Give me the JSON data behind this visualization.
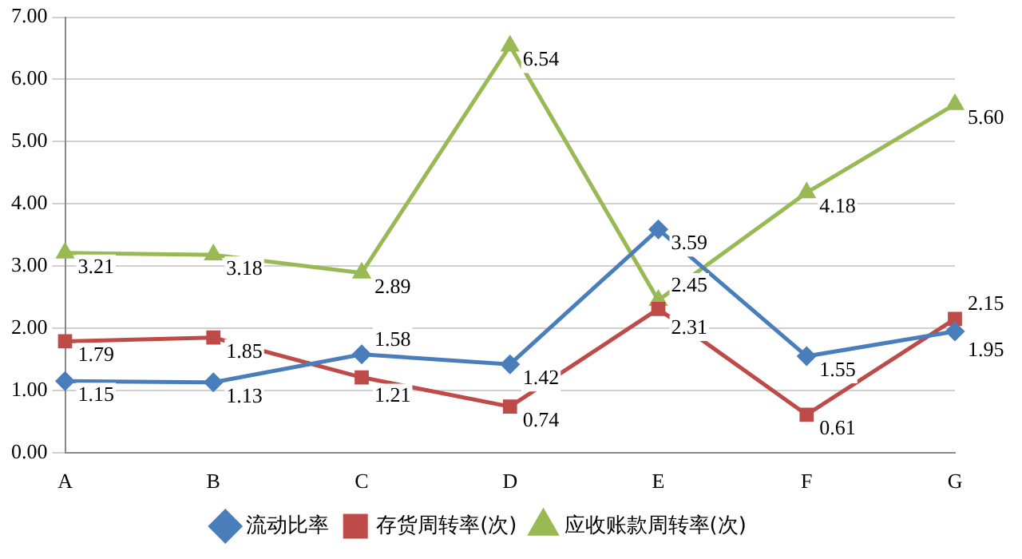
{
  "chart_data": {
    "type": "line",
    "categories": [
      "A",
      "B",
      "C",
      "D",
      "E",
      "F",
      "G"
    ],
    "series": [
      {
        "name": "流动比率",
        "color": "#4a7ebb",
        "marker": "diamond",
        "values": [
          1.15,
          1.13,
          1.58,
          1.42,
          3.59,
          1.55,
          1.95
        ],
        "value_labels": [
          "1.15",
          "1.13",
          "1.58",
          "1.42",
          "3.59",
          "1.55",
          "1.95"
        ]
      },
      {
        "name": "存货周转率(次)",
        "color": "#be4b48",
        "marker": "square",
        "values": [
          1.79,
          1.85,
          1.21,
          0.74,
          2.31,
          0.61,
          2.15
        ],
        "value_labels": [
          "1.79",
          "1.85",
          "1.21",
          "0.74",
          "2.31",
          "0.61",
          "2.15"
        ]
      },
      {
        "name": "应收账款周转率(次)",
        "color": "#98b954",
        "marker": "triangle",
        "values": [
          3.21,
          3.18,
          2.89,
          6.54,
          2.45,
          4.18,
          5.6
        ],
        "value_labels": [
          "3.21",
          "3.18",
          "2.89",
          "6.54",
          "2.45",
          "4.18",
          "5.60"
        ]
      }
    ],
    "ylim": [
      0,
      7
    ],
    "yticks": [
      {
        "value": 0,
        "label": "0.00"
      },
      {
        "value": 1,
        "label": "1.00"
      },
      {
        "value": 2,
        "label": "2.00"
      },
      {
        "value": 3,
        "label": "3.00"
      },
      {
        "value": 4,
        "label": "4.00"
      },
      {
        "value": 5,
        "label": "5.00"
      },
      {
        "value": 6,
        "label": "6.00"
      },
      {
        "value": 7,
        "label": "7.00"
      }
    ],
    "grid": "y",
    "legend": "bottom",
    "line_style": "solid"
  }
}
